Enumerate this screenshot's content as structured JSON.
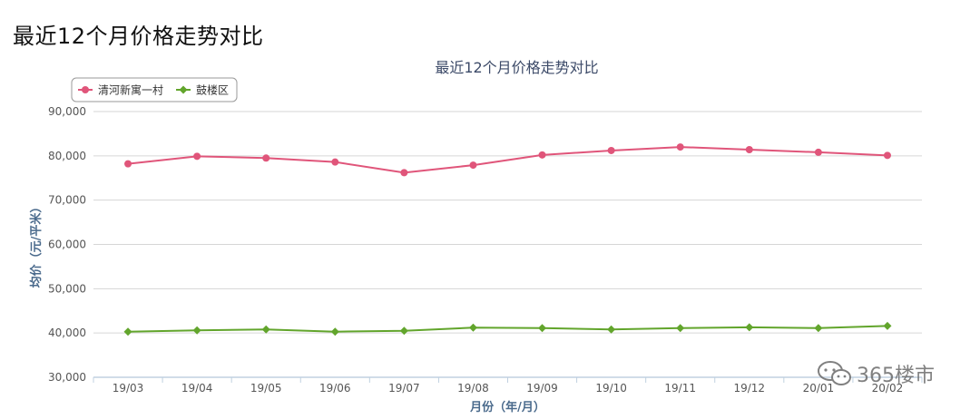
{
  "page": {
    "heading": "最近12个月价格走势对比"
  },
  "watermark": {
    "text": "365楼市"
  },
  "chart_data": {
    "type": "line",
    "title": "最近12个月价格走势对比",
    "xlabel": "月份（年/月）",
    "ylabel": "均价（元/平米）",
    "categories": [
      "19/03",
      "19/04",
      "19/05",
      "19/06",
      "19/07",
      "19/08",
      "19/09",
      "19/10",
      "19/11",
      "19/12",
      "20/01",
      "20/02"
    ],
    "ylim": [
      30000,
      90000
    ],
    "yticks": [
      30000,
      40000,
      50000,
      60000,
      70000,
      80000,
      90000
    ],
    "ytick_labels": [
      "30,000",
      "40,000",
      "50,000",
      "60,000",
      "70,000",
      "80,000",
      "90,000"
    ],
    "grid": true,
    "legend_position": "top-left",
    "series": [
      {
        "name": "清河新寓一村",
        "color": "#e0557a",
        "marker": "circle",
        "values": [
          78200,
          79900,
          79500,
          78600,
          76200,
          77900,
          80200,
          81200,
          82000,
          81400,
          80800,
          80100
        ]
      },
      {
        "name": "鼓楼区",
        "color": "#62a52c",
        "marker": "diamond",
        "values": [
          40300,
          40600,
          40800,
          40300,
          40500,
          41200,
          41100,
          40800,
          41100,
          41300,
          41100,
          41600
        ]
      }
    ]
  }
}
